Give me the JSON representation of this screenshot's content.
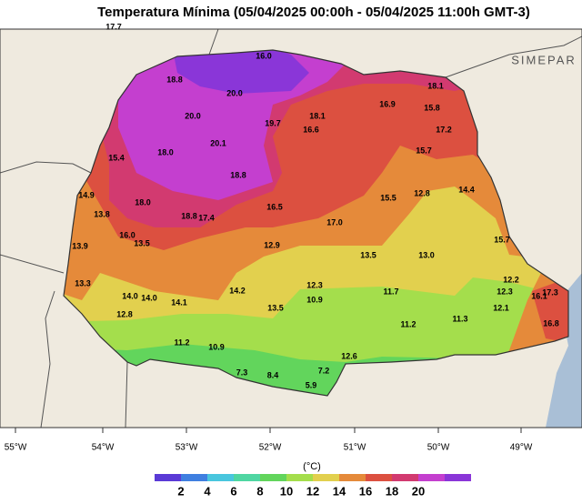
{
  "header": {
    "title": "Temperatura Mínima (05/04/2025 00:00h - 05/04/2025 11:00h GMT-3)",
    "logo": "SIMEPAR"
  },
  "map": {
    "stations": [
      "17.7",
      "16.0",
      "18.8",
      "20.0",
      "20.0",
      "19.7",
      "18.1",
      "16.9",
      "15.8",
      "18.1",
      "17.2",
      "16.6",
      "20.1",
      "18.0",
      "15.4",
      "15.7",
      "18.8",
      "14.9",
      "18.0",
      "15.5",
      "12.8",
      "14.4",
      "16.5",
      "13.8",
      "18.8",
      "17.4",
      "17.0",
      "16.0",
      "13.5",
      "15.7",
      "13.9",
      "12.9",
      "13.5",
      "13.0",
      "13.3",
      "12.3",
      "14.2",
      "12.2",
      "12.3",
      "14.0",
      "14.0",
      "14.1",
      "10.9",
      "11.7",
      "16.1",
      "17.3",
      "12.8",
      "13.5",
      "12.1",
      "11.2",
      "11.3",
      "16.8",
      "11.2",
      "10.9",
      "12.6",
      "7.3",
      "8.4",
      "7.2",
      "5.9"
    ],
    "longitudes": [
      "55°W",
      "54°W",
      "53°W",
      "52°W",
      "51°W",
      "50°W",
      "49°W"
    ]
  },
  "legend": {
    "unit": "(°C)",
    "ticks": [
      "2",
      "4",
      "6",
      "8",
      "10",
      "12",
      "14",
      "16",
      "18",
      "20"
    ],
    "colors": [
      "#5a3ad6",
      "#3f7fe0",
      "#49c6de",
      "#4fd6a2",
      "#62d55c",
      "#a4de4c",
      "#e2d04e",
      "#e58a3a",
      "#dc5040",
      "#d23a70",
      "#c43fcf",
      "#8a36d8"
    ]
  }
}
